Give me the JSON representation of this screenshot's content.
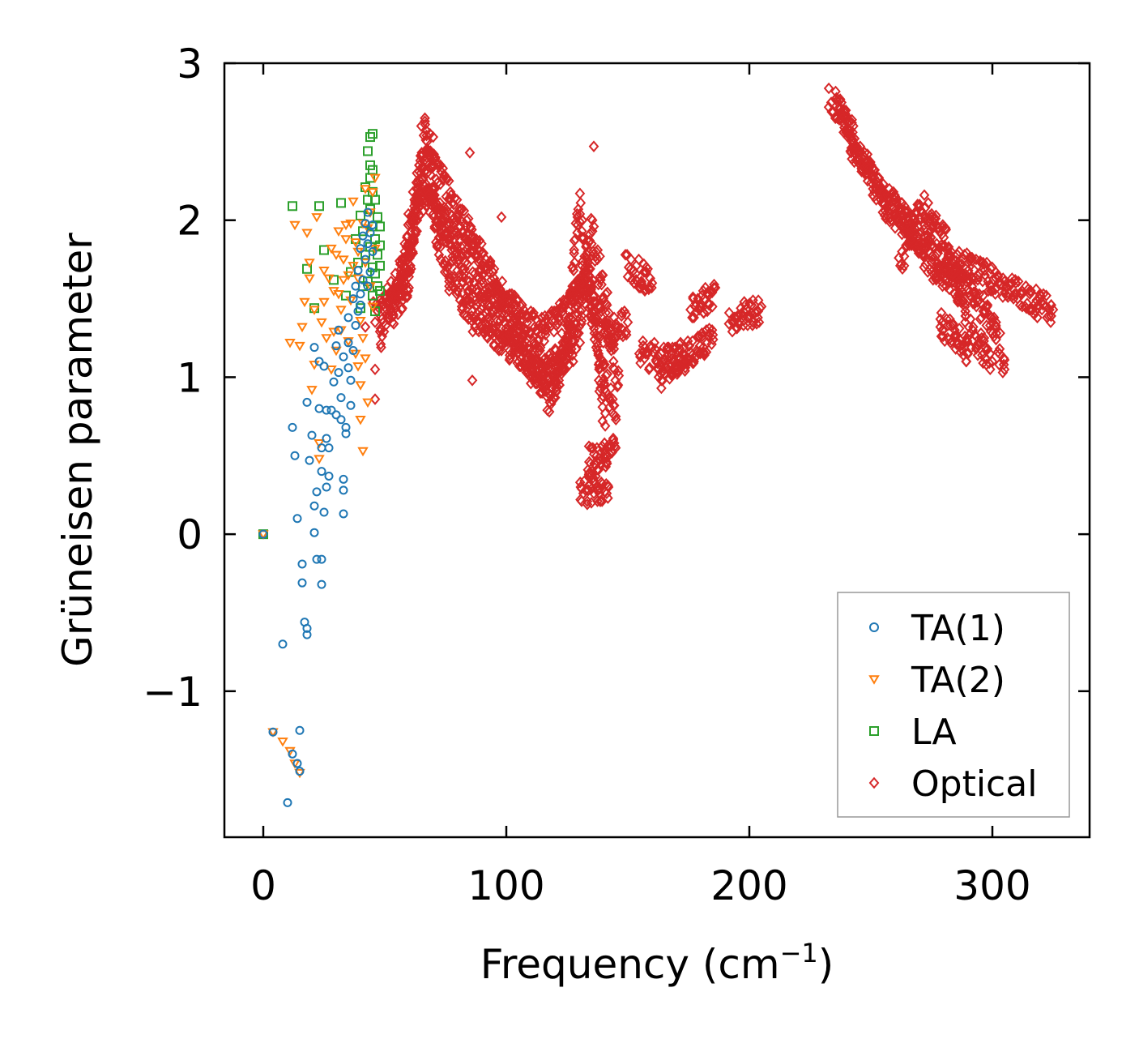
{
  "chart_data": {
    "type": "scatter",
    "xlabel": "Frequency (cm",
    "xlabel_sup": "−1",
    "xlabel_close": ")",
    "ylabel": "Grüneisen parameter",
    "xlim": [
      -16,
      340
    ],
    "ylim": [
      -1.93,
      3.0
    ],
    "xticks": [
      0,
      100,
      200,
      300
    ],
    "xtick_labels": [
      "0",
      "100",
      "200",
      "300"
    ],
    "yticks": [
      -1,
      0,
      1,
      2,
      3
    ],
    "ytick_labels": [
      "−1",
      "0",
      "1",
      "2",
      "3"
    ],
    "legend_position": "lower-right",
    "series": [
      {
        "name": "TA(1)",
        "marker": "circle",
        "color": "#1f77b4",
        "points": [
          [
            0,
            0
          ],
          [
            4,
            -1.26
          ],
          [
            8,
            -0.7
          ],
          [
            10,
            -1.71
          ],
          [
            12,
            -1.4
          ],
          [
            14,
            -1.46
          ],
          [
            15,
            -1.25
          ],
          [
            15,
            -1.51
          ],
          [
            12,
            0.68
          ],
          [
            13,
            0.5
          ],
          [
            14,
            0.1
          ],
          [
            16,
            -0.31
          ],
          [
            16,
            -0.19
          ],
          [
            17,
            -0.56
          ],
          [
            18,
            -0.6
          ],
          [
            18,
            -0.64
          ],
          [
            18,
            0.84
          ],
          [
            19,
            0.47
          ],
          [
            20,
            0.63
          ],
          [
            21,
            0.18
          ],
          [
            21,
            0.01
          ],
          [
            21,
            1.19
          ],
          [
            22,
            0.27
          ],
          [
            22,
            -0.16
          ],
          [
            23,
            0.8
          ],
          [
            23,
            1.1
          ],
          [
            24,
            0.55
          ],
          [
            24,
            0.4
          ],
          [
            24,
            -0.16
          ],
          [
            24,
            -0.32
          ],
          [
            25,
            0.14
          ],
          [
            25,
            1.07
          ],
          [
            26,
            0.61
          ],
          [
            26,
            0.79
          ],
          [
            26,
            0.3
          ],
          [
            27,
            0.37
          ],
          [
            27,
            0.55
          ],
          [
            28,
            0.79
          ],
          [
            29,
            0.97
          ],
          [
            30,
            1.2
          ],
          [
            30,
            0.76
          ],
          [
            31,
            1.03
          ],
          [
            31,
            1.3
          ],
          [
            32,
            0.87
          ],
          [
            32,
            0.73
          ],
          [
            33,
            1.13
          ],
          [
            33,
            0.35
          ],
          [
            33,
            0.28
          ],
          [
            33,
            0.13
          ],
          [
            34,
            0.64
          ],
          [
            34,
            0.68
          ],
          [
            35,
            1.22
          ],
          [
            35,
            1.06
          ],
          [
            35,
            1.38
          ],
          [
            36,
            0.98
          ],
          [
            36,
            0.82
          ],
          [
            37,
            1.17
          ],
          [
            37,
            1.5
          ],
          [
            38,
            1.33
          ],
          [
            38,
            1.58
          ],
          [
            39,
            1.42
          ],
          [
            39,
            1.68
          ],
          [
            40,
            1.46
          ],
          [
            40,
            1.82
          ],
          [
            40,
            1.53
          ],
          [
            41,
            1.62
          ],
          [
            41,
            1.9
          ],
          [
            42,
            1.75
          ],
          [
            42,
            1.98
          ],
          [
            43,
            1.58
          ],
          [
            43,
            1.85
          ],
          [
            43,
            2.05
          ],
          [
            44,
            1.67
          ],
          [
            44,
            1.92
          ],
          [
            45,
            1.8
          ],
          [
            45,
            1.97
          ]
        ]
      },
      {
        "name": "TA(2)",
        "marker": "triangle",
        "color": "#ff7f0e",
        "points": [
          [
            0,
            0
          ],
          [
            4,
            -1.26
          ],
          [
            8,
            -1.32
          ],
          [
            11,
            -1.38
          ],
          [
            13,
            -1.46
          ],
          [
            15,
            -1.52
          ],
          [
            11,
            1.22
          ],
          [
            13,
            1.97
          ],
          [
            15,
            1.2
          ],
          [
            16,
            1.32
          ],
          [
            17,
            1.48
          ],
          [
            18,
            1.92
          ],
          [
            19,
            1.63
          ],
          [
            19,
            1.73
          ],
          [
            20,
            0.92
          ],
          [
            21,
            1.43
          ],
          [
            21,
            1.08
          ],
          [
            22,
            2.02
          ],
          [
            23,
            0.48
          ],
          [
            23,
            0.58
          ],
          [
            24,
            1.35
          ],
          [
            25,
            1.68
          ],
          [
            25,
            1.48
          ],
          [
            26,
            1.25
          ],
          [
            27,
            1.63
          ],
          [
            28,
            1.82
          ],
          [
            28,
            1.05
          ],
          [
            29,
            1.55
          ],
          [
            29,
            1.29
          ],
          [
            30,
            1.78
          ],
          [
            30,
            1.17
          ],
          [
            31,
            1.53
          ],
          [
            31,
            1.93
          ],
          [
            32,
            1.43
          ],
          [
            32,
            1.3
          ],
          [
            33,
            1.62
          ],
          [
            33,
            1.75
          ],
          [
            34,
            1.88
          ],
          [
            34,
            1.97
          ],
          [
            35,
            1.65
          ],
          [
            35,
            1.23
          ],
          [
            36,
            1.49
          ],
          [
            36,
            1.98
          ],
          [
            37,
            1.71
          ],
          [
            37,
            2.12
          ],
          [
            38,
            1.86
          ],
          [
            38,
            1.15
          ],
          [
            39,
            1.63
          ],
          [
            39,
            1.8
          ],
          [
            39,
            1.07
          ],
          [
            40,
            1.36
          ],
          [
            40,
            0.95
          ],
          [
            40,
            0.73
          ],
          [
            41,
            1.98
          ],
          [
            41,
            1.25
          ],
          [
            41,
            0.53
          ],
          [
            42,
            1.73
          ],
          [
            42,
            2.2
          ],
          [
            42,
            1.12
          ],
          [
            43,
            0.84
          ],
          [
            43,
            1.95
          ],
          [
            44,
            1.58
          ],
          [
            44,
            2.05
          ],
          [
            45,
            1.45
          ],
          [
            45,
            2.18
          ],
          [
            46,
            2.27
          ],
          [
            46,
            1.82
          ]
        ]
      },
      {
        "name": "LA",
        "marker": "square",
        "color": "#2ca02c",
        "points": [
          [
            0,
            0
          ],
          [
            12,
            2.09
          ],
          [
            18,
            1.69
          ],
          [
            21,
            1.44
          ],
          [
            23,
            2.09
          ],
          [
            25,
            1.81
          ],
          [
            29,
            1.62
          ],
          [
            32,
            2.11
          ],
          [
            34,
            1.52
          ],
          [
            36,
            1.67
          ],
          [
            38,
            1.88
          ],
          [
            39,
            1.73
          ],
          [
            40,
            1.44
          ],
          [
            40,
            2.03
          ],
          [
            41,
            1.58
          ],
          [
            41,
            1.93
          ],
          [
            42,
            2.21
          ],
          [
            42,
            1.78
          ],
          [
            43,
            2.13
          ],
          [
            43,
            2.44
          ],
          [
            43,
            1.61
          ],
          [
            44,
            2.53
          ],
          [
            44,
            2.35
          ],
          [
            44,
            2.27
          ],
          [
            44,
            1.83
          ],
          [
            44,
            2.07
          ],
          [
            45,
            2.55
          ],
          [
            45,
            2.32
          ],
          [
            45,
            2.18
          ],
          [
            45,
            1.96
          ],
          [
            45,
            1.7
          ],
          [
            45,
            1.52
          ],
          [
            46,
            2.13
          ],
          [
            46,
            1.88
          ],
          [
            46,
            1.66
          ],
          [
            46,
            1.42
          ],
          [
            47,
            2.02
          ],
          [
            47,
            1.78
          ],
          [
            47,
            1.58
          ],
          [
            48,
            1.96
          ],
          [
            48,
            1.84
          ],
          [
            48,
            1.71
          ],
          [
            48,
            1.55
          ]
        ]
      },
      {
        "name": "Optical",
        "marker": "diamond",
        "color": "#d62728",
        "points": []
      }
    ]
  }
}
